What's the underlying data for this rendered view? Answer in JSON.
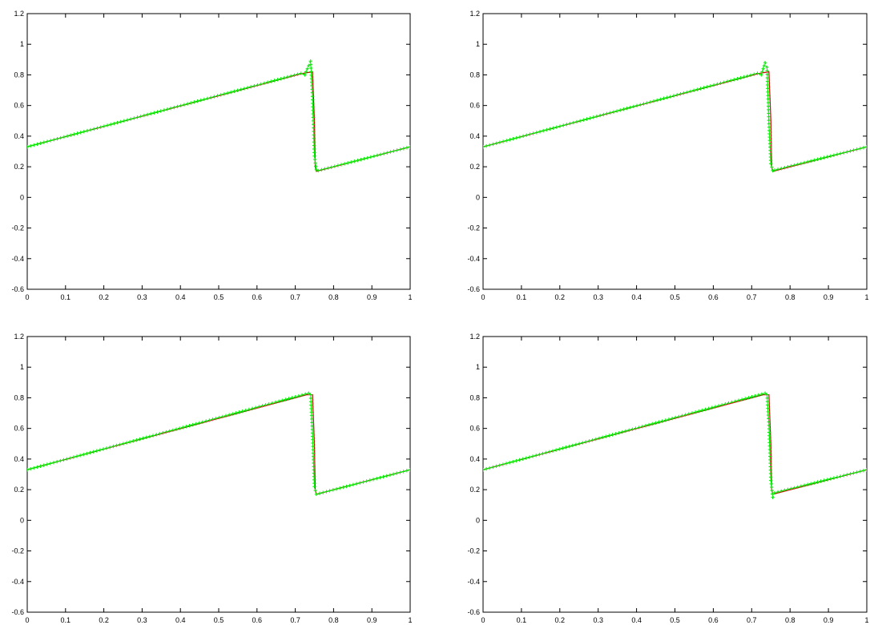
{
  "chart_data": [
    {
      "type": "line",
      "position": "top-left",
      "xlim": [
        0,
        1
      ],
      "ylim": [
        -0.6,
        1.2
      ],
      "xticks": [
        "0",
        "0.1",
        "0.2",
        "0.3",
        "0.4",
        "0.5",
        "0.6",
        "0.7",
        "0.8",
        "0.9",
        "1"
      ],
      "yticks": [
        "-0.6",
        "-0.4",
        "-0.2",
        "0",
        "0.2",
        "0.4",
        "0.6",
        "0.8",
        "1",
        "1.2"
      ],
      "colors": {
        "exact": "#cc0000",
        "numerical": "#00ee00"
      },
      "series": [
        {
          "style": "solid",
          "x": [
            0,
            0.72,
            0.745,
            0.75,
            0.752,
            0.755,
            1
          ],
          "y": [
            0.33,
            0.81,
            0.82,
            0.5,
            0.2,
            0.17,
            0.33
          ]
        },
        {
          "style": "dashed-markers",
          "x": [
            0,
            0.715,
            0.725,
            0.735,
            0.74,
            0.745,
            0.75,
            0.755,
            0.76,
            1
          ],
          "y": [
            0.33,
            0.81,
            0.8,
            0.86,
            0.89,
            0.66,
            0.27,
            0.18,
            0.175,
            0.33
          ]
        }
      ]
    },
    {
      "type": "line",
      "position": "top-right",
      "xlim": [
        0,
        1
      ],
      "ylim": [
        -0.6,
        1.2
      ],
      "xticks": [
        "0",
        "0.1",
        "0.2",
        "0.3",
        "0.4",
        "0.5",
        "0.6",
        "0.7",
        "0.8",
        "0.9",
        "1"
      ],
      "yticks": [
        "-0.6",
        "-0.4",
        "-0.2",
        "0",
        "0.2",
        "0.4",
        "0.6",
        "0.8",
        "1",
        "1.2"
      ],
      "colors": {
        "exact": "#cc0000",
        "numerical": "#00ee00"
      },
      "series": [
        {
          "style": "solid",
          "x": [
            0,
            0.72,
            0.745,
            0.75,
            0.752,
            0.755,
            1
          ],
          "y": [
            0.33,
            0.81,
            0.82,
            0.5,
            0.2,
            0.17,
            0.33
          ]
        },
        {
          "style": "dashed-markers",
          "x": [
            0,
            0.715,
            0.725,
            0.735,
            0.74,
            0.745,
            0.75,
            0.755,
            0.76,
            1
          ],
          "y": [
            0.33,
            0.81,
            0.8,
            0.88,
            0.85,
            0.48,
            0.22,
            0.175,
            0.178,
            0.33
          ]
        }
      ]
    },
    {
      "type": "line",
      "position": "bottom-left",
      "xlim": [
        0,
        1
      ],
      "ylim": [
        -0.6,
        1.2
      ],
      "xticks": [
        "0",
        "0.1",
        "0.2",
        "0.3",
        "0.4",
        "0.5",
        "0.6",
        "0.7",
        "0.8",
        "0.9",
        "1"
      ],
      "yticks": [
        "-0.6",
        "-0.4",
        "-0.2",
        "0",
        "0.2",
        "0.4",
        "0.6",
        "0.8",
        "1",
        "1.2"
      ],
      "colors": {
        "exact": "#cc0000",
        "numerical": "#00ee00"
      },
      "series": [
        {
          "style": "solid",
          "x": [
            0,
            0.73,
            0.745,
            0.75,
            0.752,
            0.755,
            1
          ],
          "y": [
            0.33,
            0.82,
            0.82,
            0.5,
            0.2,
            0.17,
            0.33
          ]
        },
        {
          "style": "dashed-markers",
          "x": [
            0,
            0.735,
            0.74,
            0.745,
            0.75,
            0.755,
            1
          ],
          "y": [
            0.33,
            0.83,
            0.82,
            0.57,
            0.22,
            0.17,
            0.33
          ]
        }
      ]
    },
    {
      "type": "line",
      "position": "bottom-right",
      "xlim": [
        0,
        1
      ],
      "ylim": [
        -0.6,
        1.2
      ],
      "xticks": [
        "0",
        "0.1",
        "0.2",
        "0.3",
        "0.4",
        "0.5",
        "0.6",
        "0.7",
        "0.8",
        "0.9",
        "1"
      ],
      "yticks": [
        "-0.6",
        "-0.4",
        "-0.2",
        "0",
        "0.2",
        "0.4",
        "0.6",
        "0.8",
        "1",
        "1.2"
      ],
      "colors": {
        "exact": "#cc0000",
        "numerical": "#00ee00"
      },
      "series": [
        {
          "style": "solid",
          "x": [
            0,
            0.73,
            0.745,
            0.75,
            0.752,
            0.755,
            1
          ],
          "y": [
            0.33,
            0.82,
            0.82,
            0.5,
            0.2,
            0.17,
            0.33
          ]
        },
        {
          "style": "dashed-markers",
          "x": [
            0,
            0.735,
            0.74,
            0.745,
            0.75,
            0.755,
            0.76,
            1
          ],
          "y": [
            0.33,
            0.83,
            0.82,
            0.62,
            0.26,
            0.15,
            0.18,
            0.33
          ]
        }
      ]
    }
  ]
}
